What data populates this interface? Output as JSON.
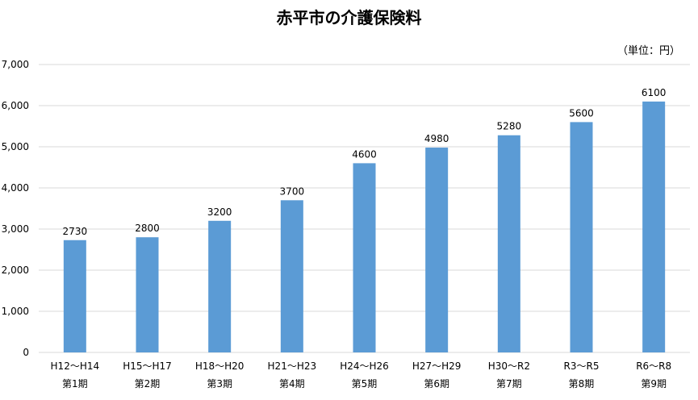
{
  "chart_data": {
    "type": "bar",
    "title": "赤平市の介護保険料",
    "unit_label": "（単位：円）",
    "categories": [
      "H12～H14",
      "H15～H17",
      "H18～H20",
      "H21～H23",
      "H24～H26",
      "H27～H29",
      "H30～R2",
      "R3～R5",
      "R6～R8"
    ],
    "subcategories": [
      "第1期",
      "第2期",
      "第3期",
      "第4期",
      "第5期",
      "第6期",
      "第7期",
      "第8期",
      "第9期"
    ],
    "values": [
      2730,
      2800,
      3200,
      3700,
      4600,
      4980,
      5280,
      5600,
      6100
    ],
    "data_labels": [
      "2730",
      "2800",
      "3200",
      "3700",
      "4600",
      "4980",
      "5280",
      "5600",
      "6100"
    ],
    "ylim": [
      0,
      7000
    ],
    "yticks": [
      0,
      1000,
      2000,
      3000,
      4000,
      5000,
      6000,
      7000
    ],
    "ytick_labels": [
      "0",
      "1,000",
      "2,000",
      "3,000",
      "4,000",
      "5,000",
      "6,000",
      "7,000"
    ],
    "grid": true,
    "bar_color": "#5b9bd5",
    "grid_color": "#d9d9d9",
    "xlabel": "",
    "ylabel": ""
  }
}
